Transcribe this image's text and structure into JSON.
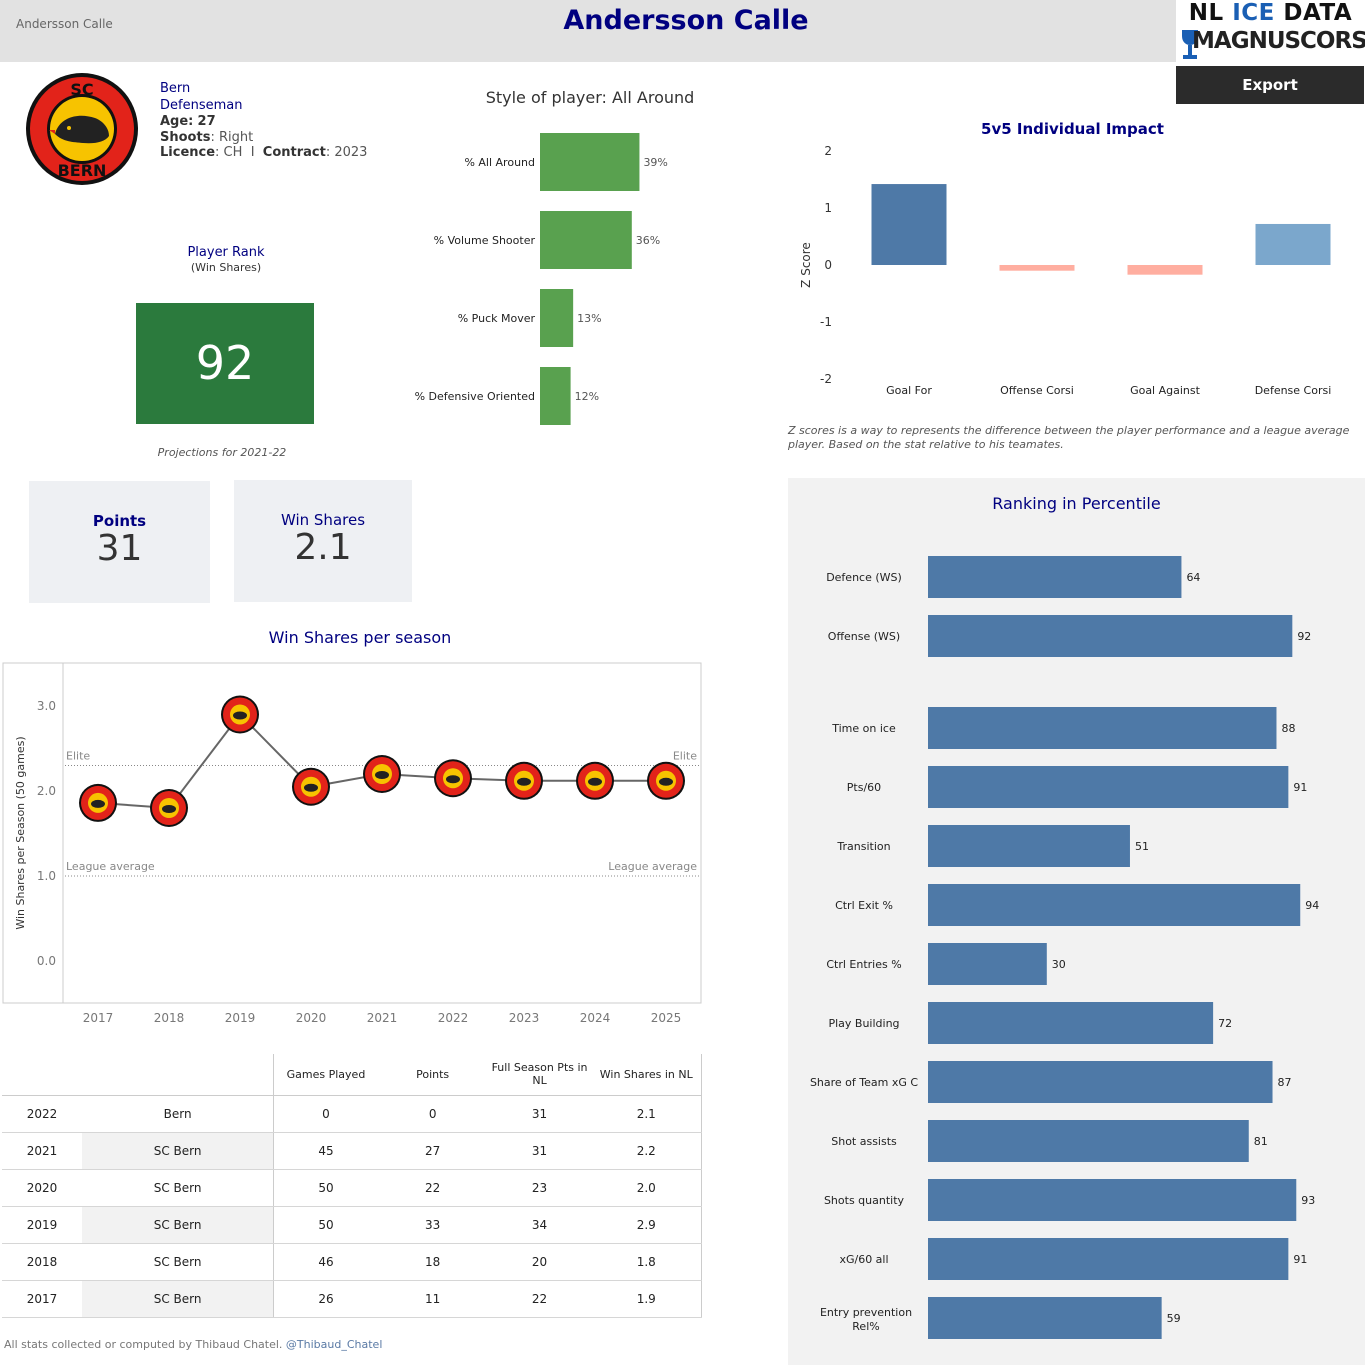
{
  "header": {
    "small_name": "Andersson Calle",
    "title": "Andersson Calle",
    "logo_nl": "NL",
    "logo_ice": "ICE",
    "logo_data": "DATA",
    "logo_brand": "MAGNUSCORSI"
  },
  "export_label": "Export",
  "team_logo": {
    "text": "SC BERN",
    "icon": "sc-bern-bear-logo",
    "colors": {
      "outer": "#111111",
      "ring": "#e2231a",
      "inner": "#f7c300"
    }
  },
  "player": {
    "team": "Bern",
    "position": "Defenseman",
    "age_label": "Age:",
    "age": "27",
    "shoots_label": "Shoots",
    "shoots": ": Right",
    "licence_label": "Licence",
    "licence": ": CH",
    "separator": "I",
    "contract_label": "Contract",
    "contract": ": 2023"
  },
  "rank": {
    "label": "Player Rank",
    "sub": "(Win Shares)",
    "value": "92",
    "color": "#2b7a3d",
    "projections": "Projections for 2021-22"
  },
  "kpis": {
    "points_label": "Points",
    "points_value": "31",
    "ws_label": "Win Shares",
    "ws_value": "2.1"
  },
  "style_chart": {
    "title": "Style of player: All Around",
    "color": "#59a14f",
    "categories": [
      "% All Around",
      "% Volume Shooter",
      "% Puck Mover",
      "% Defensive Oriented"
    ],
    "values": [
      39,
      36,
      13,
      12
    ],
    "labels": [
      "39%",
      "36%",
      "13%",
      "12%"
    ]
  },
  "impact_chart": {
    "title": "5v5 Individual Impact",
    "ylabel": "Z Score",
    "y_ticks": [
      "2",
      "1",
      "0",
      "-1",
      "-2"
    ],
    "categories": [
      "Goal For",
      "Offense Corsi",
      "Goal Against",
      "Defense Corsi"
    ],
    "values": [
      1.42,
      -0.1,
      -0.17,
      0.72
    ],
    "colors": [
      "#4e79a7",
      "#ffaea0",
      "#ffaea0",
      "#7ba7cc"
    ],
    "note": "Z scores is a way to represents the difference between the player performance and a league average player. Based on the stat relative to his teamates."
  },
  "ws_chart": {
    "title": "Win Shares per season",
    "ylabel": "Win Shares per Season (50 games)",
    "y_ticks": [
      "3.0",
      "2.0",
      "1.0",
      "0.0"
    ],
    "years": [
      "2017",
      "2018",
      "2019",
      "2020",
      "2021",
      "2022",
      "2023",
      "2024",
      "2025"
    ],
    "values": [
      1.86,
      1.8,
      2.9,
      2.05,
      2.2,
      2.15,
      2.12,
      2.12,
      2.12
    ],
    "elite": 2.3,
    "league_avg": 1.0,
    "elite_label": "Elite",
    "league_label": "League average"
  },
  "table": {
    "headers": [
      "Games Played",
      "Points",
      "Full Season Pts in NL",
      "Win Shares in NL"
    ],
    "rows": [
      {
        "year": "2022",
        "team": "Bern",
        "gp": "0",
        "pts": "0",
        "full": "31",
        "ws": "2.1"
      },
      {
        "year": "2021",
        "team": "SC Bern",
        "gp": "45",
        "pts": "27",
        "full": "31",
        "ws": "2.2"
      },
      {
        "year": "2020",
        "team": "SC Bern",
        "gp": "50",
        "pts": "22",
        "full": "23",
        "ws": "2.0"
      },
      {
        "year": "2019",
        "team": "SC Bern",
        "gp": "50",
        "pts": "33",
        "full": "34",
        "ws": "2.9"
      },
      {
        "year": "2018",
        "team": "SC Bern",
        "gp": "46",
        "pts": "18",
        "full": "20",
        "ws": "1.8"
      },
      {
        "year": "2017",
        "team": "SC Bern",
        "gp": "26",
        "pts": "11",
        "full": "22",
        "ws": "1.9"
      }
    ]
  },
  "percentile": {
    "title": "Ranking in Percentile",
    "color": "#4e79a7",
    "items": [
      {
        "label": "Defence (WS)",
        "value": 64
      },
      {
        "label": "Offense (WS)",
        "value": 92
      },
      {
        "label": "Time on ice",
        "value": 88
      },
      {
        "label": "Pts/60",
        "value": 91
      },
      {
        "label": "Transition",
        "value": 51
      },
      {
        "label": "Ctrl Exit %",
        "value": 94
      },
      {
        "label": "Ctrl Entries %",
        "value": 30
      },
      {
        "label": "Play Building",
        "value": 72
      },
      {
        "label": "Share of Team xG C",
        "value": 87
      },
      {
        "label": "Shot assists",
        "value": 81
      },
      {
        "label": "Shots quantity",
        "value": 93
      },
      {
        "label": "xG/60 all",
        "value": 91
      },
      {
        "label": "Entry prevention Rel%",
        "value": 59
      }
    ]
  },
  "footer": {
    "text": "All stats collected or computed by Thibaud Chatel.",
    "handle": "@Thibaud_Chatel"
  }
}
